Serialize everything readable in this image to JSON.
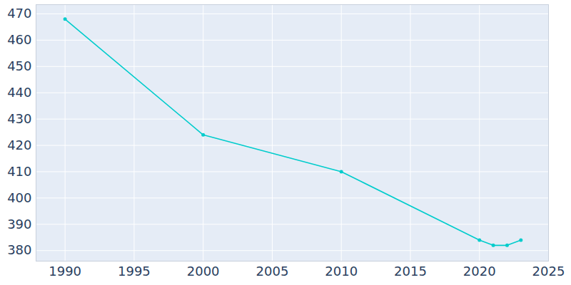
{
  "chart_data": {
    "type": "line",
    "x": [
      1990,
      2000,
      2010,
      2020,
      2021,
      2022,
      2023
    ],
    "values": [
      468,
      424,
      410,
      384,
      382,
      382,
      384
    ],
    "color": "#00cccc",
    "marker": "circle",
    "xlim": [
      1987.9,
      2025
    ],
    "ylim": [
      376,
      473.5
    ],
    "xticks": [
      1990,
      1995,
      2000,
      2005,
      2010,
      2015,
      2020,
      2025
    ],
    "yticks": [
      380,
      390,
      400,
      410,
      420,
      430,
      440,
      450,
      460,
      470
    ],
    "grid": true
  }
}
